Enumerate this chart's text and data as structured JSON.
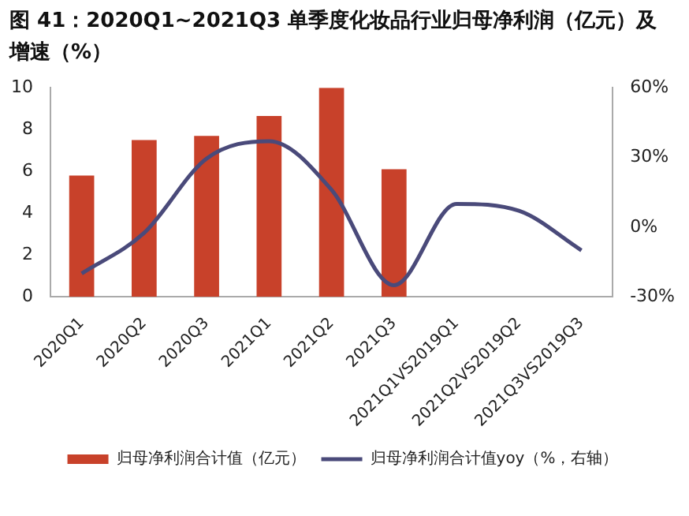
{
  "chart_data": {
    "type": "bar",
    "title": "图 41：2020Q1~2021Q3 单季度化妆品行业归母净利润（亿元）及增速（%）",
    "categories": [
      "2020Q1",
      "2020Q2",
      "2020Q3",
      "2021Q1",
      "2021Q2",
      "2021Q3",
      "2021Q1VS2019Q1",
      "2021Q2VS2019Q2",
      "2021Q3VS2019Q3"
    ],
    "series": [
      {
        "name": "归母净利润合计值（亿元）",
        "color": "#c8412a",
        "values": [
          5.8,
          7.5,
          7.7,
          8.65,
          10.0,
          6.1,
          null,
          null,
          null
        ]
      },
      {
        "name": "归母净利润合计值yoy（%，右轴）",
        "type": "line",
        "axis": "y2",
        "color": "#4a4a7a",
        "values": [
          -20,
          -2.5,
          29.5,
          37,
          16,
          -25,
          10,
          7,
          -10
        ]
      }
    ],
    "ylim": [
      0,
      10
    ],
    "yticks": [
      0,
      2,
      4,
      6,
      8,
      10
    ],
    "y2lim": [
      -30,
      60
    ],
    "y2ticks": [
      {
        "value": -30,
        "label": "-30%"
      },
      {
        "value": 0,
        "label": "0%"
      },
      {
        "value": 30,
        "label": "30%"
      },
      {
        "value": 60,
        "label": "60%"
      }
    ],
    "grid": false,
    "legend": "bottom",
    "marker": "none"
  }
}
